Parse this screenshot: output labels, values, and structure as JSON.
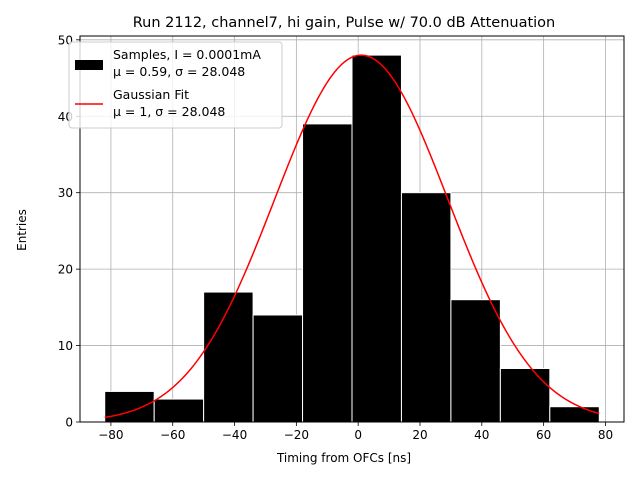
{
  "chart_data": {
    "type": "bar",
    "title": "Run 2112, channel7, hi gain, Pulse w/ 70.0 dB Attenuation",
    "xlabel": "Timing from OFCs [ns]",
    "ylabel": "Entries",
    "xlim": [
      -90,
      86
    ],
    "ylim": [
      0,
      50.5
    ],
    "xticks": [
      "-80",
      "-60",
      "-40",
      "-20",
      "0",
      "20",
      "40",
      "60",
      "80"
    ],
    "yticks": [
      "0",
      "10",
      "20",
      "30",
      "40",
      "50"
    ],
    "grid": true,
    "legend_position": "top-left",
    "series": [
      {
        "name": "Samples, I = 0.0001mA",
        "stats_label": "μ = 0.59, σ = 28.048",
        "color": "#000000",
        "bin_edges": [
          -82,
          -66,
          -50,
          -34,
          -18,
          -2,
          14,
          30,
          46,
          62,
          78
        ],
        "values": [
          4,
          3,
          17,
          14,
          39,
          48,
          30,
          16,
          7,
          2
        ]
      },
      {
        "name": "Gaussian Fit",
        "stats_label": "μ = 1, σ = 28.048",
        "color": "#ff0000",
        "fit": {
          "amplitude": 48,
          "mean": 1,
          "sigma": 28.048,
          "x_range": [
            -82,
            78
          ]
        }
      }
    ]
  }
}
